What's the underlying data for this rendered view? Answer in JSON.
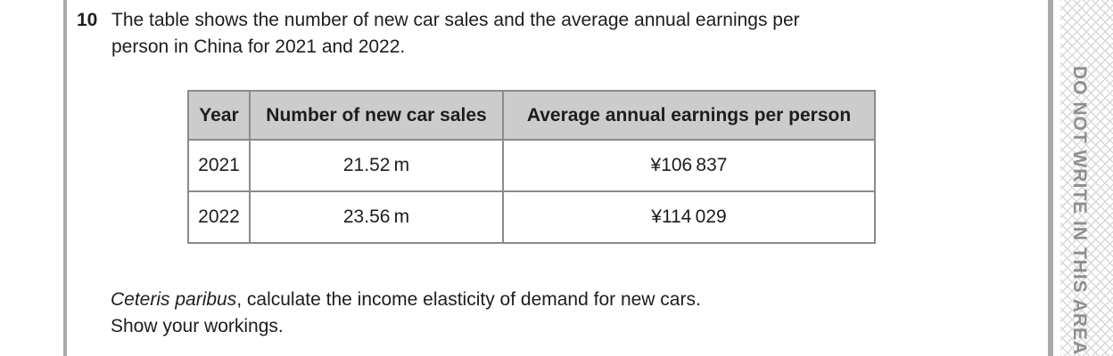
{
  "question": {
    "number": "10",
    "lines": [
      "The table shows the number of new car sales and the average annual earnings per",
      "person in China for 2021 and 2022."
    ]
  },
  "table": {
    "columns": [
      "Year",
      "Number of new car sales",
      "Average annual earnings per person"
    ],
    "rows": [
      [
        "2021",
        "21.52 m",
        "¥106 837"
      ],
      [
        "2022",
        "23.56 m",
        "¥114 029"
      ]
    ]
  },
  "prompt": {
    "italic": "Ceteris paribus",
    "rest": ", calculate the income elasticity of demand for new cars.",
    "line2": "Show your workings."
  },
  "margin": {
    "warning": "DO NOT WRITE IN THIS AREA"
  },
  "colors": {
    "table_header_bg": "#cccccc",
    "table_border": "#8b8b8b",
    "page_rule": "#a9a9a9",
    "hatch": "#d8d8d8",
    "warning_text": "#8f8f8f",
    "text": "#1d1d1b"
  }
}
